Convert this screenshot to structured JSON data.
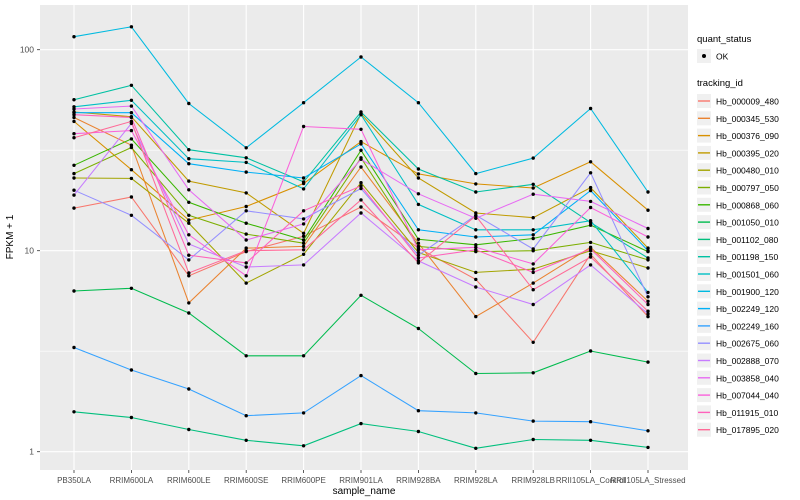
{
  "chart_data": {
    "type": "line",
    "title": "",
    "xlabel": "sample_name",
    "ylabel": "FPKM + 1",
    "y_scale": "log10",
    "y_ticks": [
      1,
      10,
      100
    ],
    "y_minor_ticks": [
      3.162,
      31.62
    ],
    "grid": "on",
    "panel_color": "#EBEBEB",
    "grid_color": "#FFFFFF",
    "point_color": "#000000",
    "tick_label_color": "#4D4D4D",
    "axis_title_color": "#000000",
    "legend_position": "right",
    "categories": [
      "PB350LA",
      "RRIM600LA",
      "RRIM600LE",
      "RRIM600SE",
      "RRIM600PE",
      "RRIM901LA",
      "RRIM928BA",
      "RRIM928LA",
      "RRIM928LB",
      "RRII105LA_Control",
      "RRII105LA_Stressed"
    ],
    "series": [
      {
        "name": "Hb_000009_480",
        "color": "#F8766D",
        "values": [
          16.3,
          18.5,
          7.5,
          9.9,
          11.8,
          16.5,
          10.3,
          7.2,
          3.5,
          9.6,
          4.7
        ]
      },
      {
        "name": "Hb_000345_530",
        "color": "#EA8331",
        "values": [
          46,
          33.5,
          5.5,
          10.3,
          10.5,
          26.1,
          10.9,
          4.7,
          6.9,
          10.4,
          5.6
        ]
      },
      {
        "name": "Hb_000376_090",
        "color": "#D89000",
        "values": [
          44,
          25.3,
          14.2,
          16.6,
          21.6,
          34.9,
          24.1,
          21.5,
          20.5,
          27.7,
          15.9
        ]
      },
      {
        "name": "Hb_000395_020",
        "color": "#C09B00",
        "values": [
          49,
          46.4,
          22.2,
          19.4,
          12.2,
          48,
          23,
          15.4,
          14.6,
          20.6,
          10.3
        ]
      },
      {
        "name": "Hb_000480_010",
        "color": "#A3A500",
        "values": [
          23,
          22.9,
          13.7,
          6.9,
          9.6,
          21.8,
          9.8,
          7.8,
          8.1,
          10,
          8.2
        ]
      },
      {
        "name": "Hb_000797_050",
        "color": "#7CAE00",
        "values": [
          24.2,
          32.6,
          15,
          12.1,
          10.9,
          29,
          10.5,
          9.9,
          10,
          11,
          9
        ]
      },
      {
        "name": "Hb_000868_060",
        "color": "#39B600",
        "values": [
          26.6,
          36,
          17.4,
          13.7,
          11.3,
          31.6,
          11.4,
          10.7,
          11.5,
          13.4,
          9.9
        ]
      },
      {
        "name": "Hb_001050_010",
        "color": "#00BB4E",
        "values": [
          6.3,
          6.5,
          4.9,
          3,
          3,
          6,
          4.1,
          2.45,
          2.47,
          3.17,
          2.79
        ]
      },
      {
        "name": "Hb_001102_080",
        "color": "#00BF7D",
        "values": [
          1.58,
          1.48,
          1.29,
          1.14,
          1.07,
          1.38,
          1.26,
          1.04,
          1.15,
          1.14,
          1.05
        ]
      },
      {
        "name": "Hb_001198_150",
        "color": "#00C1A3",
        "values": [
          56.4,
          66.5,
          31.8,
          29,
          22,
          49,
          25.5,
          19.6,
          21.4,
          13.8,
          9.2
        ]
      },
      {
        "name": "Hb_001501_060",
        "color": "#00BFC4",
        "values": [
          52,
          56,
          28.7,
          27.5,
          20.3,
          47.5,
          17,
          12.7,
          12.7,
          14.1,
          6.2
        ]
      },
      {
        "name": "Hb_001900_120",
        "color": "#00BAE0",
        "values": [
          116,
          130,
          54,
          32.5,
          54.5,
          92,
          54.5,
          24.2,
          28.9,
          51,
          19.6
        ]
      },
      {
        "name": "Hb_002249_120",
        "color": "#00B0F6",
        "values": [
          48.6,
          48.6,
          27.1,
          24.6,
          23,
          34,
          12.7,
          11.7,
          12,
          19.9,
          10
        ]
      },
      {
        "name": "Hb_002249_160",
        "color": "#35A2FF",
        "values": [
          3.3,
          2.55,
          2.05,
          1.51,
          1.56,
          2.39,
          1.6,
          1.56,
          1.42,
          1.41,
          1.27
        ]
      },
      {
        "name": "Hb_002675_060",
        "color": "#9590FF",
        "values": [
          20,
          15,
          9,
          15.8,
          14.4,
          20.4,
          9.5,
          15,
          10.2,
          24.4,
          5.9
        ]
      },
      {
        "name": "Hb_002888_070",
        "color": "#C77CFF",
        "values": [
          18.9,
          43,
          10.8,
          8.3,
          8.5,
          15.4,
          8.9,
          6.6,
          5.4,
          8.5,
          4.85
        ]
      },
      {
        "name": "Hb_003858_040",
        "color": "#E76BF3",
        "values": [
          50.7,
          52.4,
          20.1,
          11.3,
          13.6,
          28.5,
          19.2,
          14.5,
          19.1,
          17.6,
          12.9
        ]
      },
      {
        "name": "Hb_007044_040",
        "color": "#FA62DB",
        "values": [
          38.2,
          39.6,
          12,
          7.5,
          41.5,
          40.2,
          10.1,
          10.4,
          8.6,
          16.4,
          11.7
        ]
      },
      {
        "name": "Hb_011915_010",
        "color": "#FF62BC",
        "values": [
          47.5,
          46,
          9.5,
          8.7,
          15.8,
          21,
          9.2,
          10.1,
          7.8,
          10.2,
          5.4
        ]
      },
      {
        "name": "Hb_017895_020",
        "color": "#FF6A98",
        "values": [
          36.5,
          44,
          7.75,
          10,
          10.1,
          17.9,
          8.7,
          14.9,
          6.4,
          9.3,
          5
        ]
      }
    ]
  },
  "legend": {
    "quant_status_title": "quant_status",
    "ok_label": "OK",
    "tracking_id_title": "tracking_id",
    "key_bg": "#F0F0F0"
  }
}
